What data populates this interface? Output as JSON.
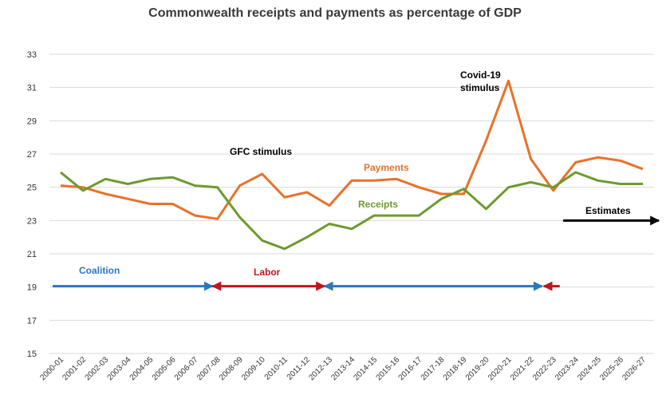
{
  "chart_data": {
    "type": "line",
    "title": "Commonwealth receipts and payments as percentage of GDP",
    "xlabel": "",
    "ylabel": "",
    "ylim": [
      15,
      33
    ],
    "yticks": [
      15,
      17,
      19,
      21,
      23,
      25,
      27,
      29,
      31,
      33
    ],
    "grid": true,
    "categories": [
      "2000-01",
      "2001-02",
      "2002-03",
      "2003-04",
      "2004-05",
      "2005-06",
      "2006-07",
      "2007-08",
      "2008-09",
      "2009-10",
      "2010-11",
      "2011-12",
      "2012-13",
      "2013-14",
      "2014-15",
      "2015-16",
      "2016-17",
      "2017-18",
      "2018-19",
      "2019-20",
      "2020-21",
      "2021-22",
      "2022-23",
      "2023-24",
      "2024-25",
      "2025-26",
      "2026-27"
    ],
    "series": [
      {
        "name": "Payments",
        "color": "#E8712A",
        "values": [
          25.1,
          25.0,
          24.6,
          24.3,
          24.0,
          24.0,
          23.3,
          23.1,
          25.1,
          25.8,
          24.4,
          24.7,
          23.9,
          25.4,
          25.4,
          25.5,
          25.0,
          24.6,
          24.6,
          27.8,
          31.4,
          26.7,
          24.8,
          26.5,
          26.8,
          26.6,
          26.1
        ]
      },
      {
        "name": "Receipts",
        "color": "#6E9A2E",
        "values": [
          25.9,
          24.8,
          25.5,
          25.2,
          25.5,
          25.6,
          25.1,
          25.0,
          23.2,
          21.8,
          21.3,
          22.0,
          22.8,
          22.5,
          23.3,
          23.3,
          23.3,
          24.3,
          24.9,
          23.7,
          25.0,
          25.3,
          25.0,
          25.9,
          25.4,
          25.2,
          25.2
        ]
      }
    ],
    "annotations": {
      "gfc": "GFC stimulus",
      "covid_line1": "Covid-19",
      "covid_line2": "stimulus",
      "payments": "Payments",
      "receipts": "Receipts",
      "estimates": "Estimates",
      "coalition": "Coalition",
      "labor": "Labor"
    },
    "periods": [
      {
        "label": "Coalition",
        "from": "2000-01",
        "to": "2007-08",
        "color": "#2E75C0",
        "arrow_y": 19.05
      },
      {
        "label": "Labor",
        "from": "2007-08",
        "to": "2012-13",
        "color": "#C0161C",
        "arrow_y": 19.05
      },
      {
        "label": "",
        "from": "2012-13",
        "to": "2022-23",
        "color": "#2E75C0",
        "arrow_y": 19.05
      },
      {
        "label": "",
        "from": "2022-23",
        "to": "2023-24",
        "color": "#C0161C",
        "arrow_y": 19.05
      }
    ],
    "colors": {
      "payments": "#E8712A",
      "receipts": "#6E9A2E",
      "coalition": "#2E75C0",
      "labor": "#C0161C",
      "estimates": "#000000",
      "grid": "#d9d9d9"
    }
  }
}
